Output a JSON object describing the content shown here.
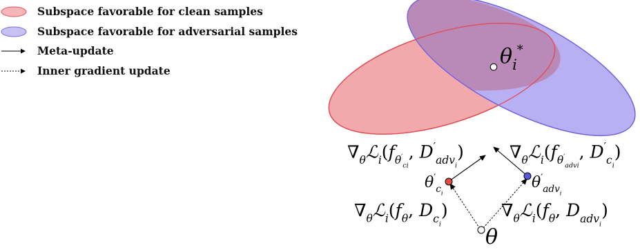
{
  "legend": {
    "items": [
      {
        "label": "Subspace favorable for clean samples",
        "symbol": "red-ellipse",
        "color": "#f4b6b8",
        "stroke": "#e0555a"
      },
      {
        "label": "Subspace favorable for adversarial samples",
        "symbol": "blue-ellipse",
        "color": "#c8c2f4",
        "stroke": "#7a6ae0"
      },
      {
        "label": "Meta-update",
        "symbol": "solid-arrow",
        "color": "#000000"
      },
      {
        "label": "Inner gradient update",
        "symbol": "dashed-arrow",
        "color": "#000000"
      }
    ]
  },
  "colors": {
    "clean_fill": "#f2a9ab",
    "clean_stroke": "#e04a50",
    "adv_fill": "#b9b0f3",
    "adv_stroke": "#6f5fe0",
    "overlap_fill": "#b98ab8",
    "clean_point": "#e84b45",
    "adv_point": "#5a57e0",
    "base_point": "#ffffff"
  },
  "labels": {
    "theta_star": {
      "base": "θ",
      "sub": "i",
      "sup": "*"
    },
    "theta": "θ",
    "grad": "∇",
    "grad_sub": "θ",
    "loss": "ℒ",
    "loss_sub": "i",
    "f": "f",
    "D": "D",
    "prime": "′",
    "c_i": "c",
    "adv_i": "adv",
    "i": "i",
    "comma": ",",
    "open_paren": "(",
    "close_paren": ")"
  }
}
